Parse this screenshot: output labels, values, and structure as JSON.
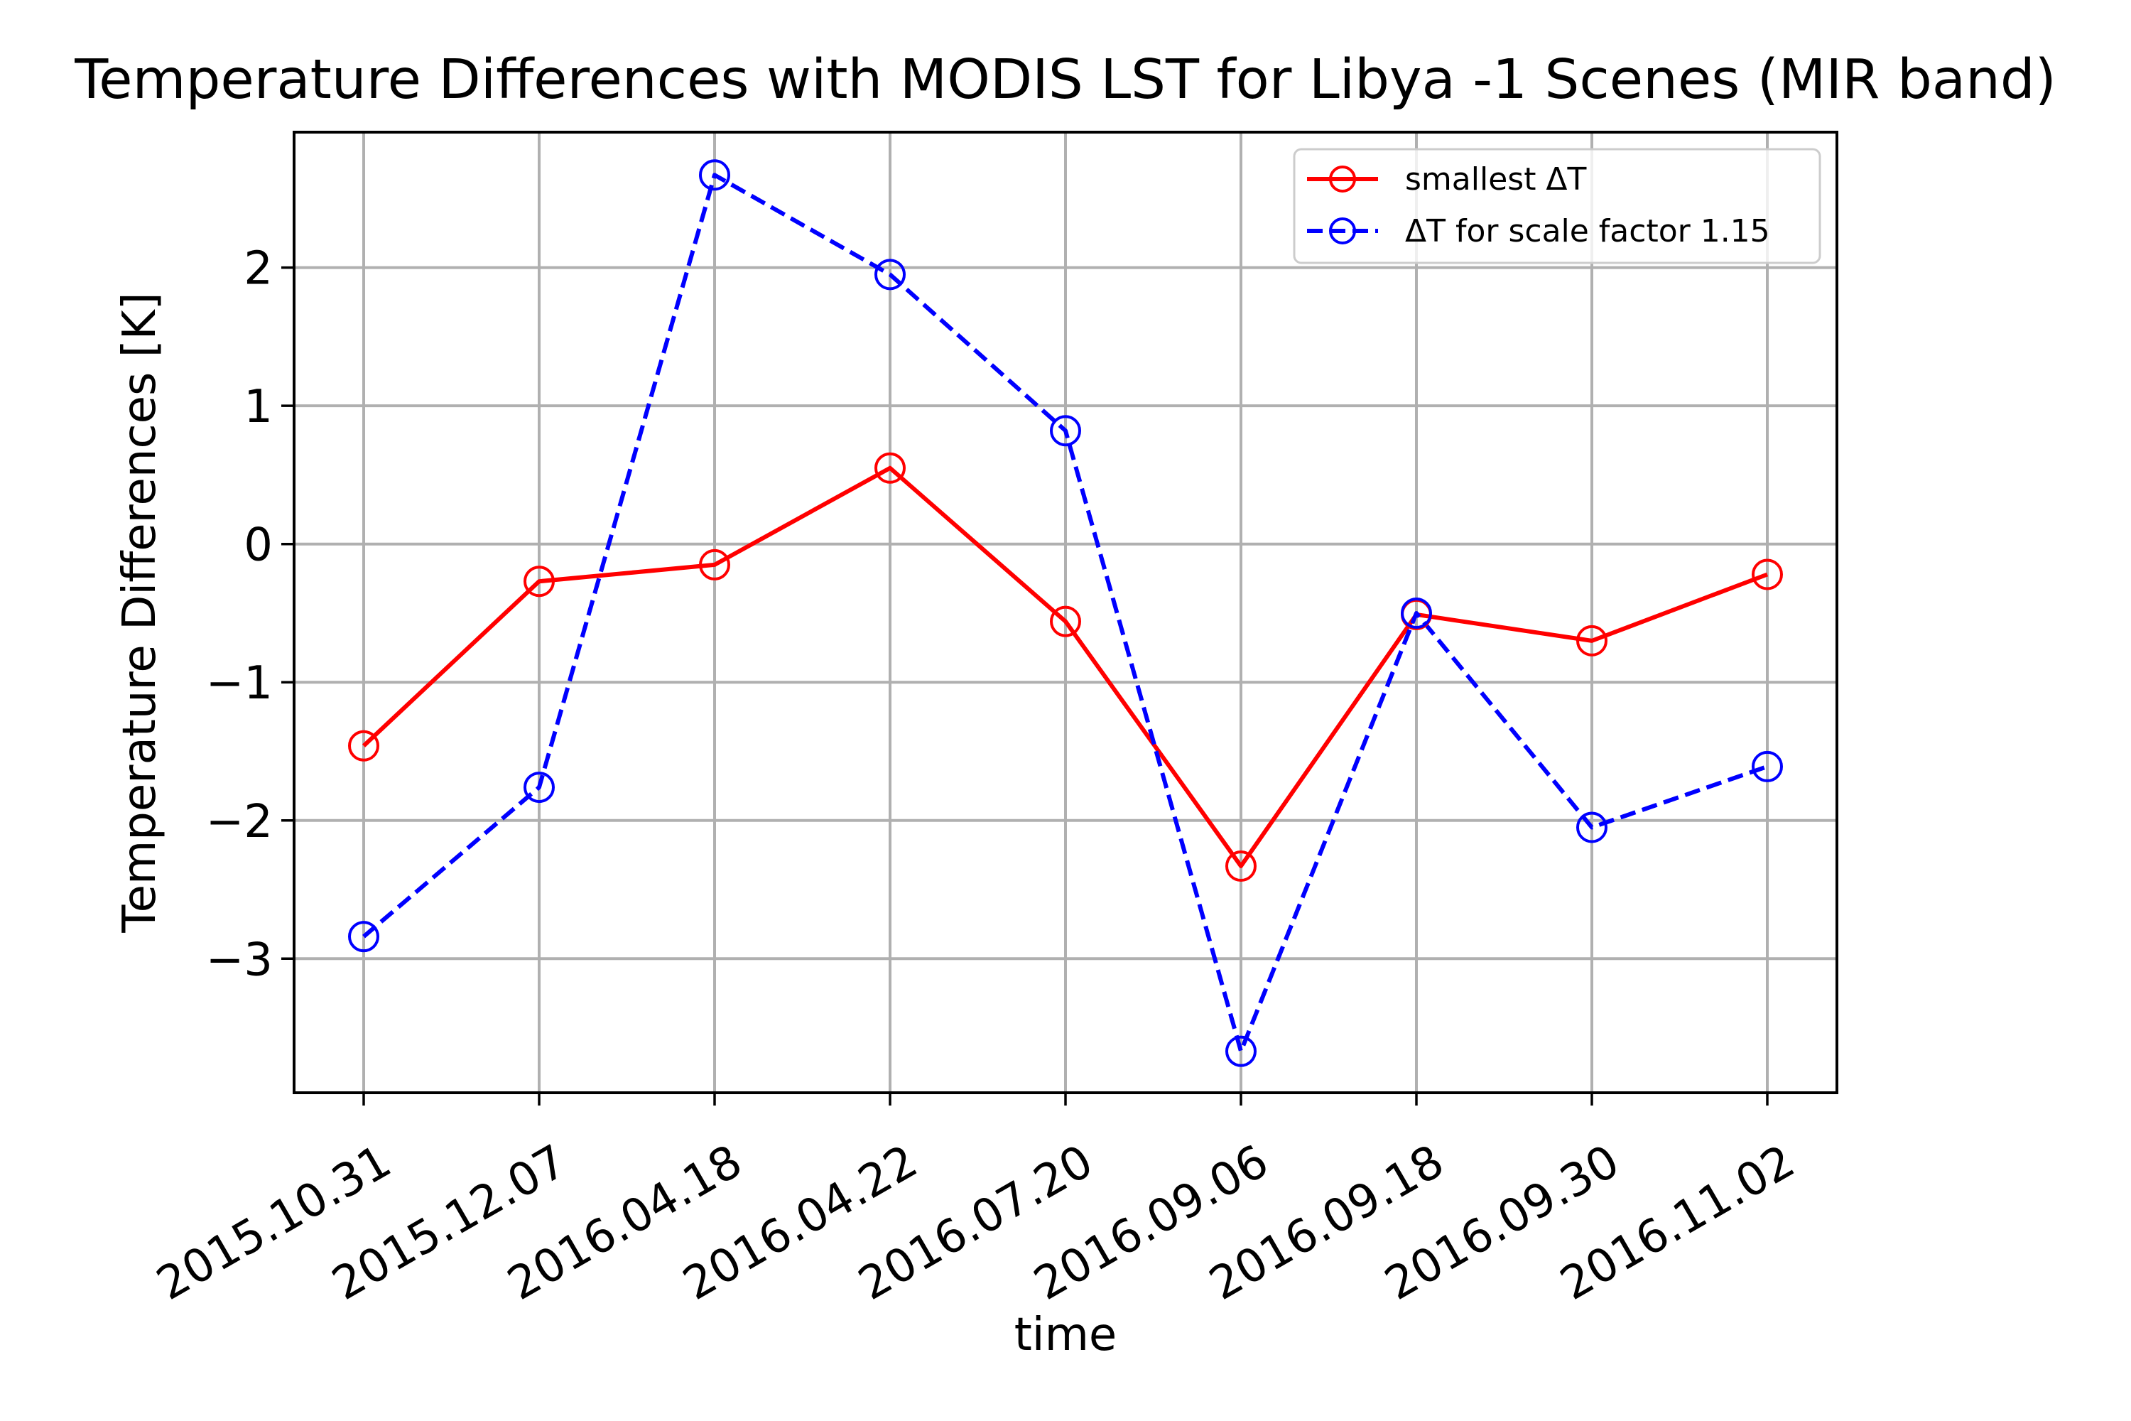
{
  "chart_data": {
    "type": "line",
    "title": "Temperature Differences with MODIS LST for Libya -1 Scenes (MIR band)",
    "xlabel": "time",
    "ylabel": "Temperature Differences [K]",
    "categories": [
      "2015.10.31",
      "2015.12.07",
      "2016.04.18",
      "2016.04.22",
      "2016.07.20",
      "2016.09.06",
      "2016.09.18",
      "2016.09.30",
      "2016.11.02"
    ],
    "yticks": [
      -3,
      -2,
      -1,
      0,
      1,
      2
    ],
    "ytick_labels": [
      "−3",
      "−2",
      "−1",
      "0",
      "1",
      "2"
    ],
    "ylim": [
      -3.97,
      2.98
    ],
    "grid": true,
    "legend_position": "upper right",
    "series": [
      {
        "name": "smallest ΔT",
        "color": "#ff0000",
        "line_style": "solid",
        "marker": "open-circle",
        "values": [
          -1.46,
          -0.27,
          -0.15,
          0.55,
          -0.56,
          -2.33,
          -0.51,
          -0.7,
          -0.22
        ]
      },
      {
        "name": "ΔT for scale factor 1.15",
        "color": "#0000ff",
        "line_style": "dashed",
        "marker": "open-circle",
        "values": [
          -2.84,
          -1.76,
          2.67,
          1.95,
          0.82,
          -3.67,
          -0.5,
          -2.05,
          -1.61
        ]
      }
    ]
  }
}
